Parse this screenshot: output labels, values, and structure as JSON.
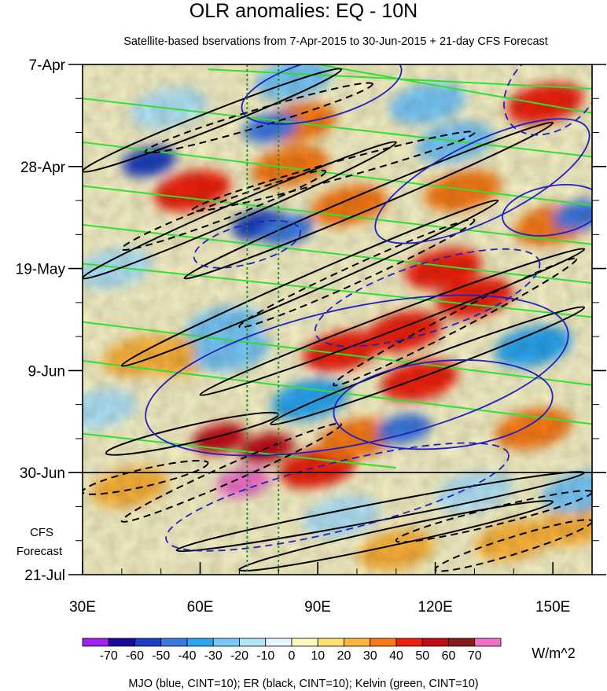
{
  "chart_data": {
    "type": "heatmap",
    "title": "OLR anomalies: EQ - 10N",
    "subtitle": "Satellite-based bservations from 7-Apr-2015 to 30-Jun-2015 + 21-day CFS Forecast",
    "x_axis": {
      "range": [
        30,
        160
      ],
      "ticks": [
        30,
        60,
        90,
        120,
        150
      ],
      "tick_labels": [
        "30E",
        "60E",
        "90E",
        "120E",
        "150E"
      ]
    },
    "y_axis": {
      "range_days": [
        0,
        105
      ],
      "ticks_days": [
        0,
        21,
        42,
        63,
        84,
        105
      ],
      "tick_labels": [
        "7-Apr",
        "28-Apr",
        "19-May",
        "9-Jun",
        "30-Jun",
        "21-Jul"
      ],
      "observation_end_day": 84
    },
    "forecast_label": [
      "CFS",
      "Forecast"
    ],
    "reference_longitudes": [
      72,
      80
    ],
    "colorbar": {
      "unit": "W/m^2",
      "levels": [
        -70,
        -60,
        -50,
        -40,
        -30,
        -20,
        -10,
        0,
        10,
        20,
        30,
        40,
        50,
        60,
        70
      ],
      "labels": [
        "-70",
        "-60",
        "-50",
        "-40",
        "-30",
        "-20",
        "-10",
        "0",
        "10",
        "20",
        "30",
        "40",
        "50",
        "60",
        "70"
      ],
      "colors": [
        "#a020f0",
        "#1a0a9a",
        "#1f3fc0",
        "#3c78e0",
        "#2aa5f0",
        "#78c8f8",
        "#b2e4f8",
        "#e6f6fa",
        "#fdf8c0",
        "#fde070",
        "#fdb43a",
        "#f87a18",
        "#ee2010",
        "#c00a14",
        "#8a1a1a",
        "#f070c8"
      ]
    },
    "contours": {
      "caption": "MJO (blue, CINT=10); ER (black, CINT=10); Kelvin (green, CINT=10)",
      "series": [
        {
          "name": "MJO",
          "color": "#2020c0",
          "cint": 10
        },
        {
          "name": "ER",
          "color": "#000000",
          "cint": 10
        },
        {
          "name": "Kelvin",
          "color": "#30e030",
          "cint": 10
        }
      ]
    },
    "anomaly_features": [
      {
        "lon": 71,
        "day": 86,
        "value": 70
      },
      {
        "lon": 65,
        "day": 77,
        "value": 55
      },
      {
        "lon": 77,
        "day": 79,
        "value": 50
      },
      {
        "lon": 90,
        "day": 83,
        "value": 40
      },
      {
        "lon": 100,
        "day": 77,
        "value": 35
      },
      {
        "lon": 116,
        "day": 65,
        "value": 45
      },
      {
        "lon": 130,
        "day": 48,
        "value": 45
      },
      {
        "lon": 122,
        "day": 42,
        "value": 40
      },
      {
        "lon": 112,
        "day": 55,
        "value": 40
      },
      {
        "lon": 96,
        "day": 59,
        "value": 40
      },
      {
        "lon": 58,
        "day": 26,
        "value": 40
      },
      {
        "lon": 83,
        "day": 21,
        "value": 35
      },
      {
        "lon": 98,
        "day": 29,
        "value": 30
      },
      {
        "lon": 148,
        "day": 8,
        "value": 40
      },
      {
        "lon": 85,
        "day": 12,
        "value": 30
      },
      {
        "lon": 127,
        "day": 26,
        "value": 30
      },
      {
        "lon": 150,
        "day": 33,
        "value": 30
      },
      {
        "lon": 145,
        "day": 75,
        "value": 30
      },
      {
        "lon": 140,
        "day": 98,
        "value": 25
      },
      {
        "lon": 155,
        "day": 95,
        "value": 25
      },
      {
        "lon": 42,
        "day": 87,
        "value": 20
      },
      {
        "lon": 110,
        "day": 100,
        "value": 20
      },
      {
        "lon": 45,
        "day": 60,
        "value": 20
      },
      {
        "lon": 55,
        "day": 60,
        "value": 20
      },
      {
        "lon": 68,
        "day": 59,
        "value": -30
      },
      {
        "lon": 75,
        "day": 33,
        "value": -60
      },
      {
        "lon": 82,
        "day": 34,
        "value": -50
      },
      {
        "lon": 47,
        "day": 20,
        "value": -60
      },
      {
        "lon": 78,
        "day": 13,
        "value": -50
      },
      {
        "lon": 84,
        "day": 3,
        "value": -30
      },
      {
        "lon": 88,
        "day": 69,
        "value": -40
      },
      {
        "lon": 112,
        "day": 75,
        "value": -50
      },
      {
        "lon": 157,
        "day": 31,
        "value": -50
      },
      {
        "lon": 145,
        "day": 58,
        "value": -40
      },
      {
        "lon": 157,
        "day": 88,
        "value": -30
      },
      {
        "lon": 66,
        "day": 54,
        "value": -30
      },
      {
        "lon": 38,
        "day": 42,
        "value": -20
      },
      {
        "lon": 125,
        "day": 16,
        "value": -30
      },
      {
        "lon": 118,
        "day": 8,
        "value": -30
      },
      {
        "lon": 52,
        "day": 9,
        "value": -20
      },
      {
        "lon": 34,
        "day": 71,
        "value": -20
      },
      {
        "lon": 96,
        "day": 93,
        "value": -20
      },
      {
        "lon": 130,
        "day": 88,
        "value": -20
      }
    ],
    "kelvin_lines": [
      {
        "start": [
          30,
          7
        ],
        "end": [
          160,
          19
        ]
      },
      {
        "start": [
          30,
          16
        ],
        "end": [
          160,
          29
        ]
      },
      {
        "start": [
          30,
          25
        ],
        "end": [
          160,
          37
        ]
      },
      {
        "start": [
          30,
          33
        ],
        "end": [
          160,
          45
        ]
      },
      {
        "start": [
          30,
          41
        ],
        "end": [
          160,
          52
        ]
      },
      {
        "start": [
          30,
          53
        ],
        "end": [
          160,
          66
        ]
      },
      {
        "start": [
          30,
          61
        ],
        "end": [
          160,
          74
        ]
      },
      {
        "start": [
          30,
          76
        ],
        "end": [
          110,
          83
        ]
      },
      {
        "start": [
          62,
          1
        ],
        "end": [
          160,
          5
        ]
      },
      {
        "start": [
          90,
          0
        ],
        "end": [
          160,
          10
        ]
      }
    ],
    "mjo_contours": [
      {
        "cx": 100,
        "cy": 64,
        "rx": 55,
        "ry": 14,
        "rot": 12,
        "dashed": false
      },
      {
        "cx": 122,
        "cy": 70,
        "rx": 28,
        "ry": 9,
        "rot": 5,
        "dashed": false
      },
      {
        "cx": 132,
        "cy": 24,
        "rx": 30,
        "ry": 8,
        "rot": 26,
        "dashed": false
      },
      {
        "cx": 150,
        "cy": 30,
        "rx": 13,
        "ry": 5,
        "rot": 10,
        "dashed": false
      },
      {
        "cx": 91,
        "cy": 5,
        "rx": 21,
        "ry": 6,
        "rot": 15,
        "dashed": false
      },
      {
        "cx": 118,
        "cy": 48,
        "rx": 30,
        "ry": 7,
        "rot": 18,
        "dashed": true
      },
      {
        "cx": 95,
        "cy": 89,
        "rx": 45,
        "ry": 7,
        "rot": 14,
        "dashed": true
      },
      {
        "cx": 150,
        "cy": 5,
        "rx": 14,
        "ry": 8,
        "rot": 40,
        "dashed": true
      },
      {
        "cx": 72,
        "cy": 37,
        "rx": 14,
        "ry": 4,
        "rot": 15,
        "dashed": true
      }
    ],
    "er_contours": [
      {
        "start": [
          30,
          22
        ],
        "end": [
          96,
          1
        ],
        "dashed": false
      },
      {
        "start": [
          30,
          44
        ],
        "end": [
          110,
          16
        ],
        "dashed": false
      },
      {
        "start": [
          56,
          44
        ],
        "end": [
          150,
          12
        ],
        "dashed": false
      },
      {
        "start": [
          40,
          62
        ],
        "end": [
          136,
          28
        ],
        "dashed": false
      },
      {
        "start": [
          60,
          68
        ],
        "end": [
          158,
          38
        ],
        "dashed": false
      },
      {
        "start": [
          78,
          74
        ],
        "end": [
          158,
          50
        ],
        "dashed": false
      },
      {
        "start": [
          36,
          80
        ],
        "end": [
          80,
          72
        ],
        "dashed": false
      },
      {
        "start": [
          54,
          100
        ],
        "end": [
          158,
          84
        ],
        "dashed": false
      },
      {
        "start": [
          70,
          104
        ],
        "end": [
          150,
          90
        ],
        "dashed": false
      },
      {
        "start": [
          46,
          18
        ],
        "end": [
          104,
          4
        ],
        "dashed": true
      },
      {
        "start": [
          58,
          30
        ],
        "end": [
          130,
          14
        ],
        "dashed": true
      },
      {
        "start": [
          40,
          38
        ],
        "end": [
          92,
          22
        ],
        "dashed": true
      },
      {
        "start": [
          70,
          54
        ],
        "end": [
          130,
          32
        ],
        "dashed": true
      },
      {
        "start": [
          94,
          66
        ],
        "end": [
          156,
          40
        ],
        "dashed": true
      },
      {
        "start": [
          40,
          94
        ],
        "end": [
          96,
          74
        ],
        "dashed": true
      },
      {
        "start": [
          30,
          88
        ],
        "end": [
          62,
          82
        ],
        "dashed": true
      },
      {
        "start": [
          120,
          104
        ],
        "end": [
          160,
          94
        ],
        "dashed": true
      },
      {
        "start": [
          110,
          98
        ],
        "end": [
          160,
          88
        ],
        "dashed": true
      }
    ]
  }
}
